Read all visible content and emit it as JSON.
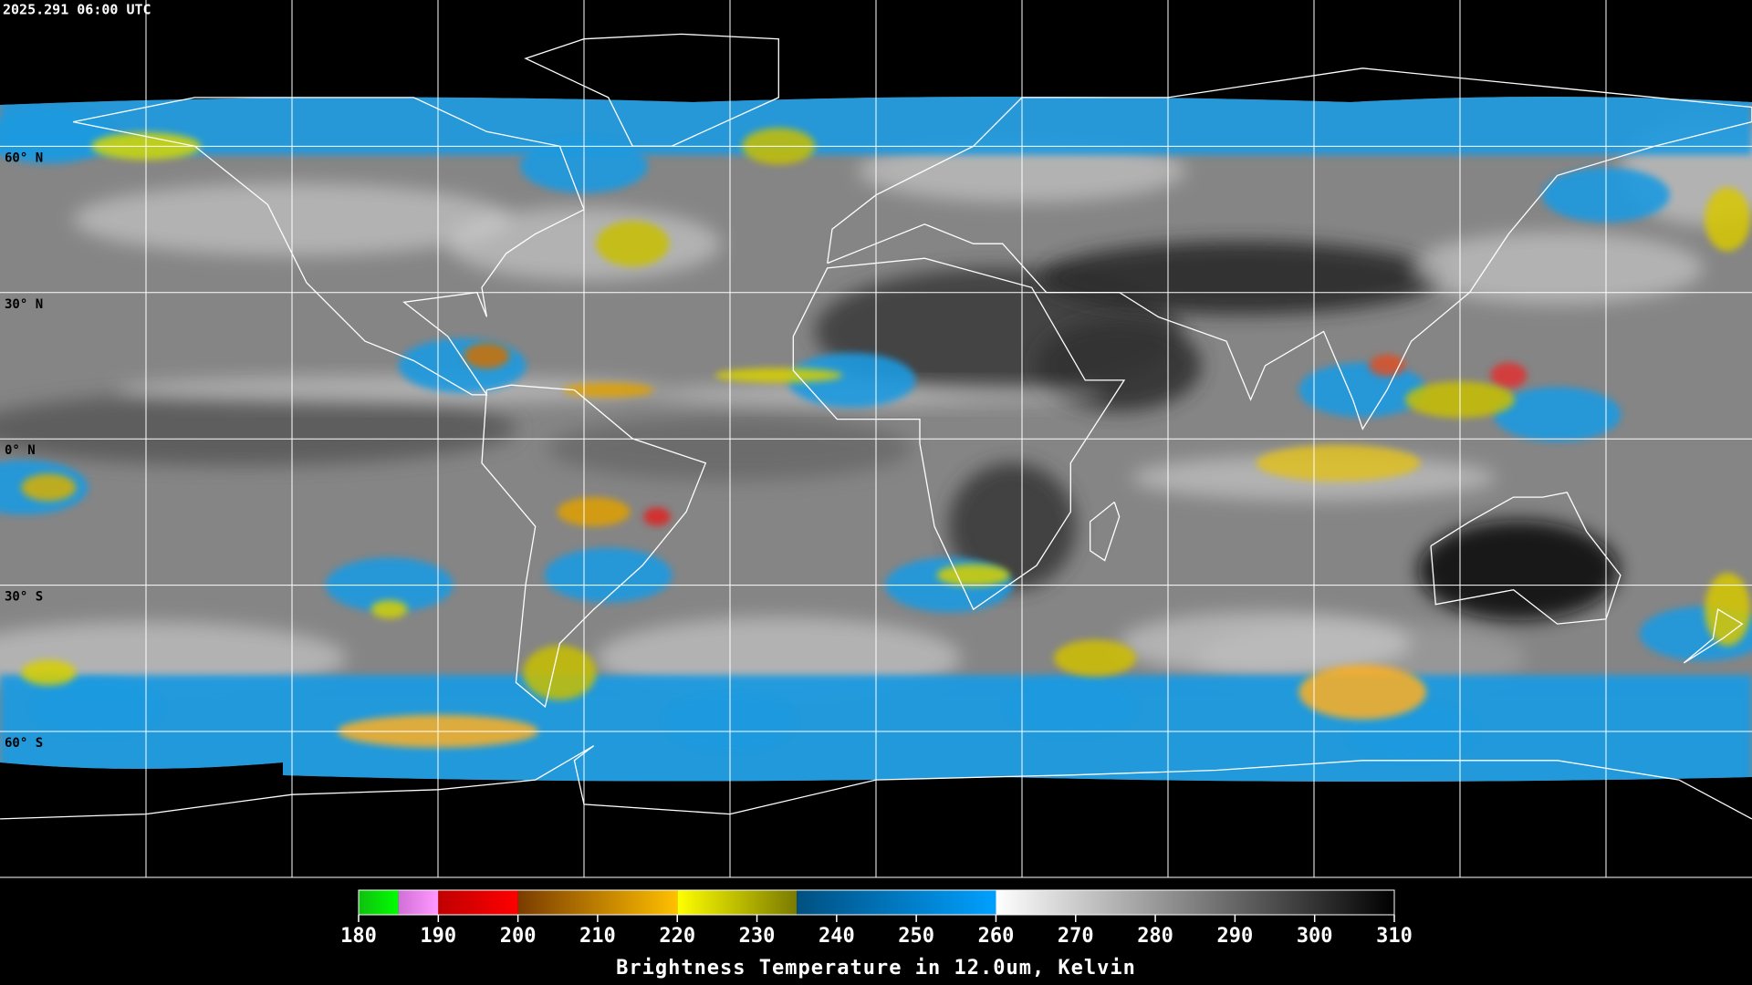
{
  "header": {
    "timestamp": "2025.291 06:00 UTC"
  },
  "map": {
    "lat_labels": [
      "60° N",
      "30° N",
      "0° N",
      "30° S",
      "60° S"
    ]
  },
  "colorbar": {
    "title": "Brightness Temperature in 12.0um, Kelvin",
    "lim": [
      180,
      310
    ],
    "ticks": [
      180,
      190,
      200,
      210,
      220,
      230,
      240,
      250,
      260,
      270,
      280,
      290,
      300,
      310
    ],
    "segments": [
      {
        "from": 180,
        "to": 185,
        "colors": [
          "#10c010",
          "#00ff00"
        ]
      },
      {
        "from": 185,
        "to": 190,
        "colors": [
          "#d070d8",
          "#ff99ff"
        ]
      },
      {
        "from": 190,
        "to": 200,
        "colors": [
          "#c00000",
          "#ff0000"
        ]
      },
      {
        "from": 200,
        "to": 220,
        "colors": [
          "#7a3c00",
          "#ffc000"
        ]
      },
      {
        "from": 220,
        "to": 235,
        "colors": [
          "#ffff00",
          "#7a7a00"
        ]
      },
      {
        "from": 235,
        "to": 260,
        "colors": [
          "#005080",
          "#00a0ff"
        ]
      },
      {
        "from": 260,
        "to": 310,
        "colors": [
          "#ffffff",
          "#000000"
        ]
      }
    ]
  }
}
